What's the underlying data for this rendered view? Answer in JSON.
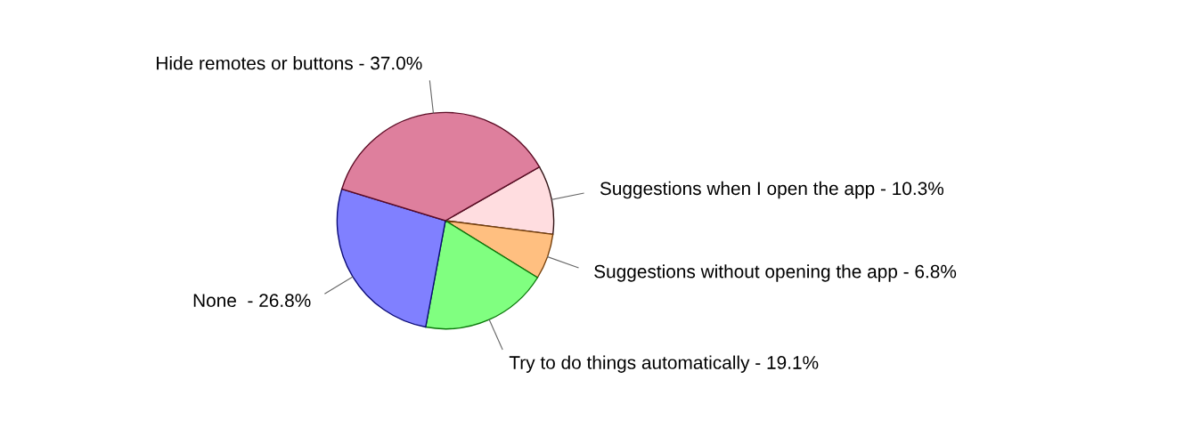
{
  "chart_data": {
    "type": "pie",
    "categories": [
      "Suggestions when I open the app -",
      "Suggestions without opening the app -",
      "Try to do things automatically -",
      "None  -",
      "Hide remotes or buttons -"
    ],
    "values": [
      10.3,
      6.8,
      19.1,
      26.8,
      37.0
    ],
    "value_labels": [
      "10.3%",
      "6.8%",
      "19.1%",
      "26.8%",
      "37.0%"
    ],
    "colors": [
      "#ffdde0",
      "#ffbf80",
      "#80ff80",
      "#8080ff",
      "#de7f9d"
    ]
  }
}
